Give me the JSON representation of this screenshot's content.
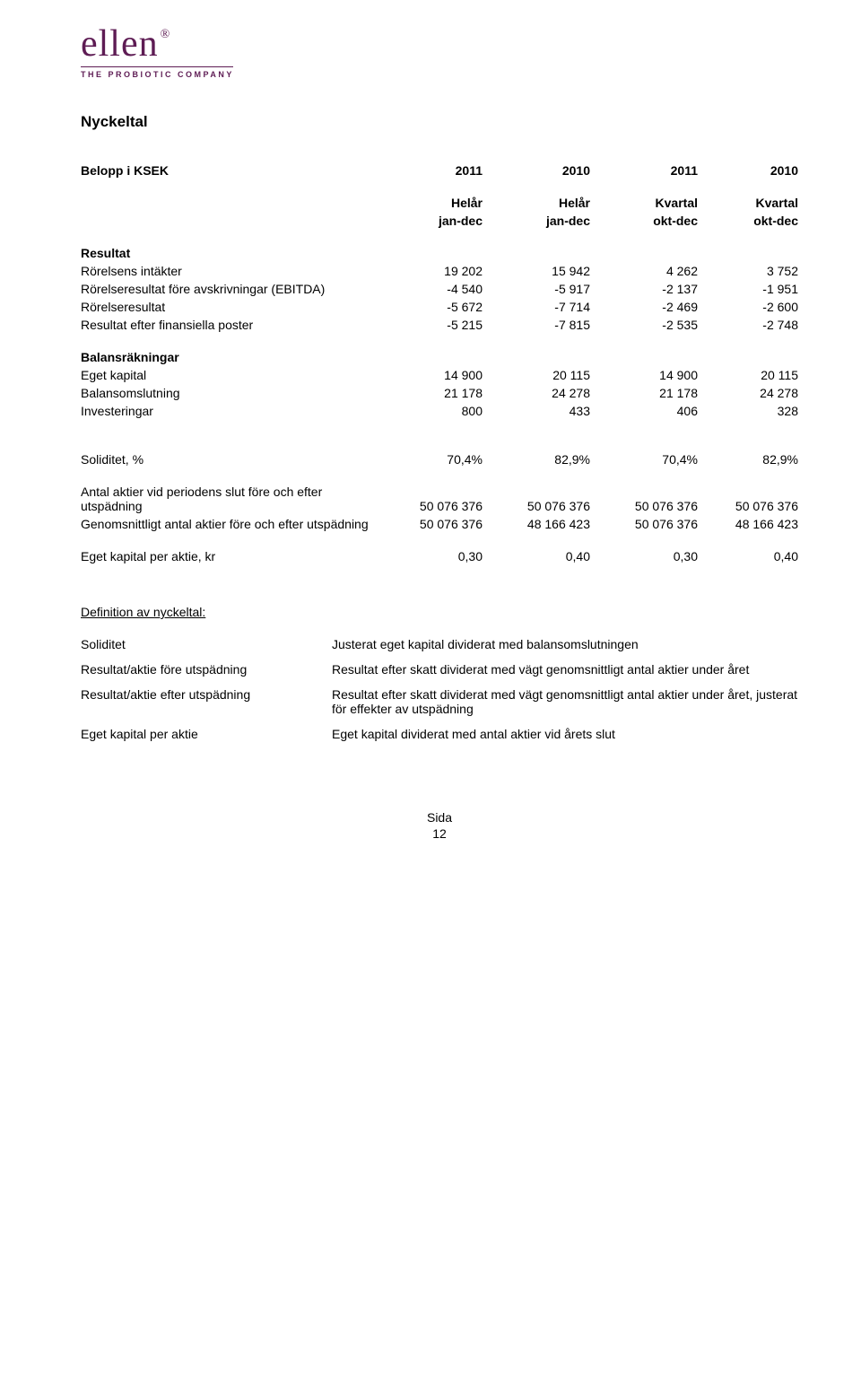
{
  "logo": {
    "name": "ellen",
    "reg": "®",
    "tagline": "THE PROBIOTIC COMPANY"
  },
  "title": "Nyckeltal",
  "header": {
    "label": "Belopp i KSEK",
    "years": [
      "2011",
      "2010",
      "2011",
      "2010"
    ],
    "period_top": [
      "Helår",
      "Helår",
      "Kvartal",
      "Kvartal"
    ],
    "period_bot": [
      "jan-dec",
      "jan-dec",
      "okt-dec",
      "okt-dec"
    ]
  },
  "groups": {
    "resultat": {
      "title": "Resultat",
      "rows": [
        {
          "label": "Rörelsens intäkter",
          "v": [
            "19 202",
            "15 942",
            "4 262",
            "3 752"
          ]
        },
        {
          "label": "Rörelseresultat före avskrivningar (EBITDA)",
          "v": [
            "-4 540",
            "-5 917",
            "-2 137",
            "-1 951"
          ]
        },
        {
          "label": "Rörelseresultat",
          "v": [
            "-5 672",
            "-7 714",
            "-2 469",
            "-2 600"
          ]
        },
        {
          "label": "Resultat efter finansiella poster",
          "v": [
            "-5 215",
            "-7 815",
            "-2 535",
            "-2 748"
          ]
        }
      ]
    },
    "balans": {
      "title": "Balansräkningar",
      "rows": [
        {
          "label": "Eget kapital",
          "v": [
            "14 900",
            "20 115",
            "14 900",
            "20 115"
          ]
        },
        {
          "label": "Balansomslutning",
          "v": [
            "21 178",
            "24 278",
            "21 178",
            "24 278"
          ]
        },
        {
          "label": "Investeringar",
          "v": [
            "800",
            "433",
            "406",
            "328"
          ]
        }
      ]
    },
    "soliditet": {
      "row": {
        "label": "Soliditet, %",
        "v": [
          "70,4%",
          "82,9%",
          "70,4%",
          "82,9%"
        ]
      }
    },
    "aktier": {
      "rows": [
        {
          "label": "Antal aktier vid periodens slut före och efter utspädning",
          "v": [
            "50 076 376",
            "50 076 376",
            "50 076 376",
            "50 076 376"
          ]
        },
        {
          "label": "Genomsnittligt antal aktier före och efter utspädning",
          "v": [
            "50 076 376",
            "48 166 423",
            "50 076 376",
            "48 166 423"
          ]
        }
      ]
    },
    "kapital": {
      "row": {
        "label": "Eget kapital per aktie, kr",
        "v": [
          "0,30",
          "0,40",
          "0,30",
          "0,40"
        ]
      }
    }
  },
  "definitions": {
    "title": "Definition av nyckeltal:",
    "items": [
      {
        "term": "Soliditet",
        "desc": "Justerat eget kapital dividerat med balansomslutningen"
      },
      {
        "term": "Resultat/aktie före utspädning",
        "desc": "Resultat efter skatt dividerat med vägt genomsnittligt antal aktier under året"
      },
      {
        "term": "Resultat/aktie efter utspädning",
        "desc": "Resultat efter skatt dividerat med vägt genomsnittligt antal aktier under året, justerat för effekter av utspädning"
      },
      {
        "term": "Eget kapital per aktie",
        "desc": "Eget kapital dividerat med antal aktier vid årets slut"
      }
    ]
  },
  "footer": {
    "l1": "Sida",
    "l2": "12"
  }
}
